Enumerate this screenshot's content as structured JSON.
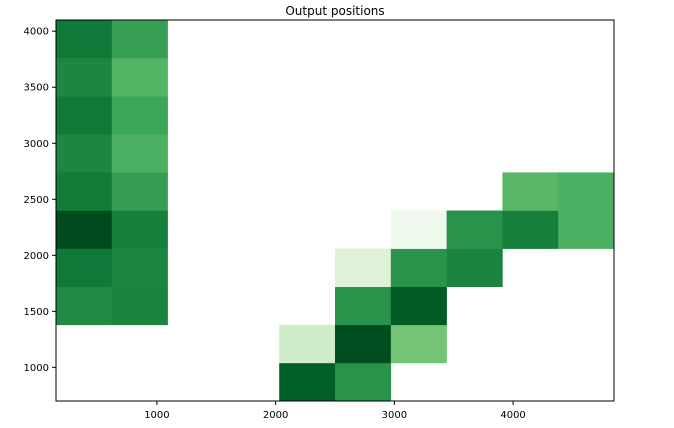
{
  "chart_data": {
    "type": "heatmap",
    "title": "Output positions",
    "xlabel": "",
    "ylabel": "",
    "colormap": "Greens",
    "empty_cell_color": "#ffffff",
    "x_edges": [
      150,
      620,
      1090,
      1560,
      2030,
      2500,
      2970,
      3440,
      3910,
      4380,
      4850
    ],
    "y_edges": [
      700,
      1040,
      1380,
      1720,
      2060,
      2400,
      2740,
      3080,
      3420,
      3760,
      4100
    ],
    "xlim": [
      150,
      4850
    ],
    "ylim": [
      700,
      4100
    ],
    "x_ticks": [
      1000,
      2000,
      3000,
      4000
    ],
    "y_ticks": [
      1000,
      1500,
      2000,
      2500,
      3000,
      3500,
      4000
    ],
    "x_tick_labels": [
      "1000",
      "2000",
      "3000",
      "4000"
    ],
    "y_tick_labels": [
      "1000",
      "1500",
      "2000",
      "2500",
      "3000",
      "3500",
      "4000"
    ],
    "intensity_note": "0 = lightest, 1 = darkest",
    "cells": [
      {
        "col": 4,
        "row": 0,
        "intensity": 0.92
      },
      {
        "col": 5,
        "row": 0,
        "intensity": 0.72
      },
      {
        "col": 4,
        "row": 1,
        "intensity": 0.22
      },
      {
        "col": 5,
        "row": 1,
        "intensity": 0.97
      },
      {
        "col": 6,
        "row": 1,
        "intensity": 0.5
      },
      {
        "col": 0,
        "row": 2,
        "intensity": 0.76
      },
      {
        "col": 1,
        "row": 2,
        "intensity": 0.78
      },
      {
        "col": 5,
        "row": 2,
        "intensity": 0.72
      },
      {
        "col": 6,
        "row": 2,
        "intensity": 0.93
      },
      {
        "col": 0,
        "row": 3,
        "intensity": 0.82
      },
      {
        "col": 1,
        "row": 3,
        "intensity": 0.77
      },
      {
        "col": 5,
        "row": 3,
        "intensity": 0.16
      },
      {
        "col": 6,
        "row": 3,
        "intensity": 0.72
      },
      {
        "col": 7,
        "row": 3,
        "intensity": 0.78
      },
      {
        "col": 0,
        "row": 4,
        "intensity": 0.98
      },
      {
        "col": 1,
        "row": 4,
        "intensity": 0.8
      },
      {
        "col": 6,
        "row": 4,
        "intensity": 0.05
      },
      {
        "col": 7,
        "row": 4,
        "intensity": 0.72
      },
      {
        "col": 8,
        "row": 4,
        "intensity": 0.8
      },
      {
        "col": 9,
        "row": 4,
        "intensity": 0.6
      },
      {
        "col": 0,
        "row": 5,
        "intensity": 0.81
      },
      {
        "col": 1,
        "row": 5,
        "intensity": 0.68
      },
      {
        "col": 8,
        "row": 5,
        "intensity": 0.57
      },
      {
        "col": 9,
        "row": 5,
        "intensity": 0.6
      },
      {
        "col": 0,
        "row": 6,
        "intensity": 0.77
      },
      {
        "col": 1,
        "row": 6,
        "intensity": 0.6
      },
      {
        "col": 0,
        "row": 7,
        "intensity": 0.82
      },
      {
        "col": 1,
        "row": 7,
        "intensity": 0.65
      },
      {
        "col": 0,
        "row": 8,
        "intensity": 0.77
      },
      {
        "col": 1,
        "row": 8,
        "intensity": 0.58
      },
      {
        "col": 0,
        "row": 9,
        "intensity": 0.82
      },
      {
        "col": 1,
        "row": 9,
        "intensity": 0.67
      }
    ]
  }
}
